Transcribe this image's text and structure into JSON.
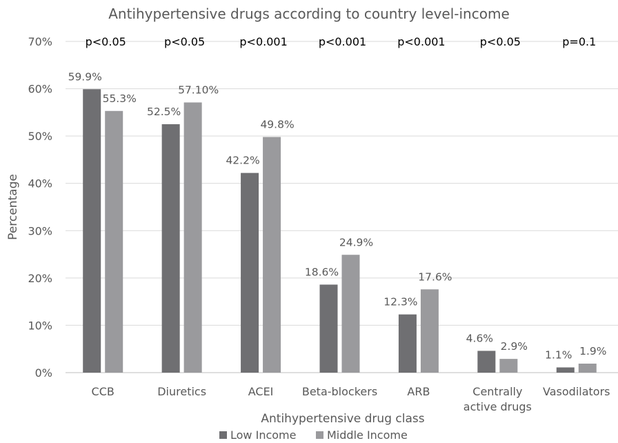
{
  "chart_data": {
    "type": "bar",
    "title": "Antihypertensive drugs according to country level-income",
    "xlabel": "Antihypertensive drug class",
    "ylabel": "Percentage",
    "ylim": [
      0,
      70
    ],
    "yticks": [
      "0%",
      "10%",
      "20%",
      "30%",
      "40%",
      "50%",
      "60%",
      "70%"
    ],
    "grid": true,
    "legend_position": "bottom",
    "categories": [
      [
        "CCB"
      ],
      [
        "Diuretics"
      ],
      [
        "ACEI"
      ],
      [
        "Beta-blockers"
      ],
      [
        "ARB"
      ],
      [
        "Centrally",
        "active drugs"
      ],
      [
        "Vasodilators"
      ]
    ],
    "p_values": [
      "p<0.05",
      "p<0.05",
      "p<0.001",
      "p<0.001",
      "p<0.001",
      "p<0.05",
      "p=0.1"
    ],
    "series": [
      {
        "name": "Low Income",
        "color": "#6f6f72",
        "values": [
          59.9,
          52.5,
          42.2,
          18.6,
          12.3,
          4.6,
          1.1
        ],
        "labels": [
          "59.9%",
          "52.5%",
          "42.2%",
          "18.6%",
          "12.3%",
          "4.6%",
          "1.1%"
        ]
      },
      {
        "name": "Middle Income",
        "color": "#9a9a9d",
        "values": [
          55.3,
          57.1,
          49.8,
          24.9,
          17.6,
          2.9,
          1.9
        ],
        "labels": [
          "55.3%",
          "57.10%",
          "49.8%",
          "24.9%",
          "17.6%",
          "2.9%",
          "1.9%"
        ]
      }
    ]
  }
}
